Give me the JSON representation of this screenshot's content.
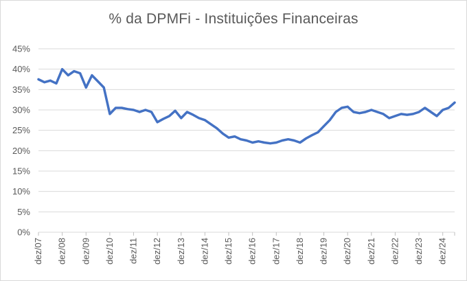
{
  "chart_data": {
    "type": "line",
    "title": "% da DPMFi - Instituições Financeiras",
    "xlabel": "",
    "ylabel": "",
    "ylim": [
      0,
      45
    ],
    "grid": true,
    "legend": "none",
    "y_ticks": [
      "0%",
      "5%",
      "10%",
      "15%",
      "20%",
      "25%",
      "30%",
      "35%",
      "40%",
      "45%"
    ],
    "x_ticks": [
      "dez/07",
      "dez/08",
      "dez/09",
      "dez/10",
      "dez/11",
      "dez/12",
      "dez/13",
      "dez/14",
      "dez/15",
      "dez/16",
      "dez/17",
      "dez/18",
      "dez/19",
      "dez/20",
      "dez/21",
      "dez/22",
      "dez/23",
      "dez/24"
    ],
    "series": [
      {
        "color": "#4472c4",
        "x": [
          "dez/07",
          "mar/08",
          "jun/08",
          "set/08",
          "dez/08",
          "mar/09",
          "jun/09",
          "set/09",
          "dez/09",
          "mar/10",
          "jun/10",
          "set/10",
          "dez/10",
          "mar/11",
          "jun/11",
          "set/11",
          "dez/11",
          "mar/12",
          "jun/12",
          "set/12",
          "dez/12",
          "mar/13",
          "jun/13",
          "set/13",
          "dez/13",
          "mar/14",
          "jun/14",
          "set/14",
          "dez/14",
          "mar/15",
          "jun/15",
          "set/15",
          "dez/15",
          "mar/16",
          "jun/16",
          "set/16",
          "dez/16",
          "mar/17",
          "jun/17",
          "set/17",
          "dez/17",
          "mar/18",
          "jun/18",
          "set/18",
          "dez/18",
          "mar/19",
          "jun/19",
          "set/19",
          "dez/19",
          "mar/20",
          "jun/20",
          "set/20",
          "dez/20",
          "mar/21",
          "jun/21",
          "set/21",
          "dez/21",
          "mar/22",
          "jun/22",
          "set/22",
          "dez/22",
          "mar/23",
          "jun/23",
          "set/23",
          "dez/23",
          "mar/24",
          "jun/24",
          "set/24",
          "dez/24",
          "mar/25",
          "jun/25"
        ],
        "values": [
          37.5,
          36.8,
          37.2,
          36.5,
          40.0,
          38.5,
          39.5,
          39.0,
          35.5,
          38.5,
          37.0,
          35.5,
          29.0,
          30.5,
          30.5,
          30.2,
          30.0,
          29.5,
          30.0,
          29.5,
          27.0,
          27.8,
          28.5,
          29.8,
          28.0,
          29.5,
          28.8,
          28.0,
          27.5,
          26.5,
          25.5,
          24.2,
          23.2,
          23.5,
          22.8,
          22.5,
          22.0,
          22.3,
          22.0,
          21.8,
          22.0,
          22.5,
          22.8,
          22.5,
          22.0,
          23.0,
          23.8,
          24.5,
          26.0,
          27.5,
          29.5,
          30.5,
          30.8,
          29.5,
          29.2,
          29.5,
          30.0,
          29.5,
          29.0,
          28.0,
          28.5,
          29.0,
          28.8,
          29.0,
          29.5,
          30.5,
          29.5,
          28.5,
          30.0,
          30.5,
          31.8
        ]
      }
    ]
  }
}
